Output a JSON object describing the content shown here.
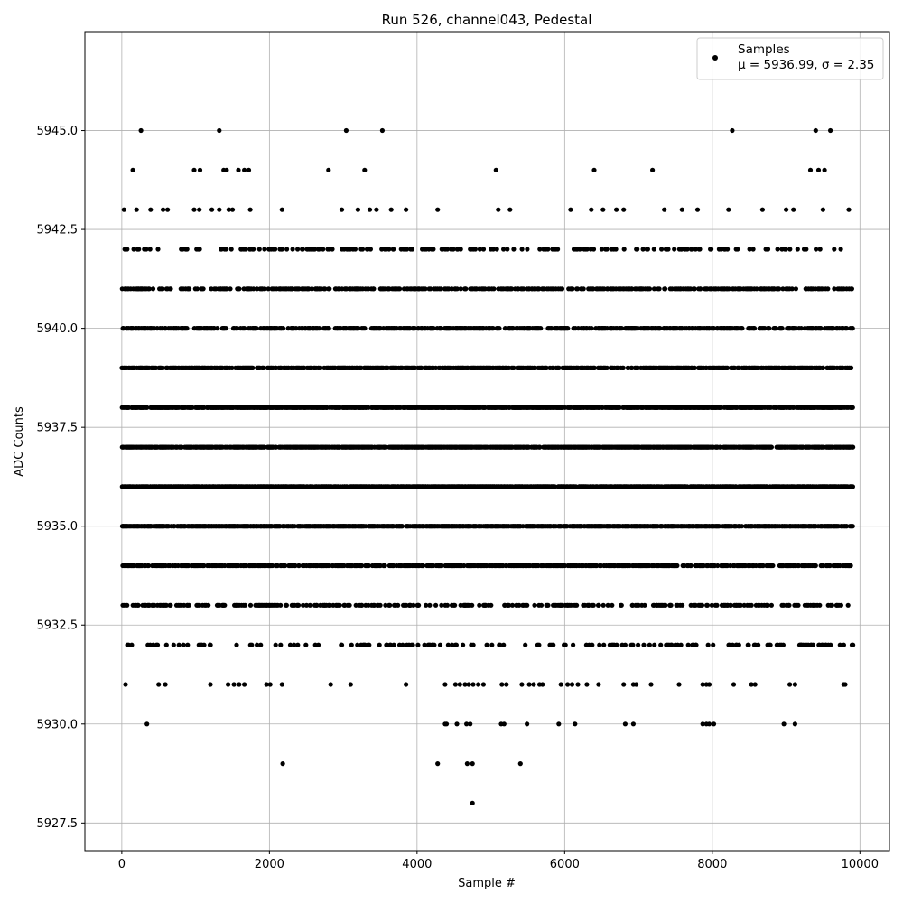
{
  "chart_data": {
    "type": "scatter",
    "title": "Run 526, channel043, Pedestal",
    "xlabel": "Sample #",
    "ylabel": "ADC Counts",
    "xlim": [
      -500,
      10400
    ],
    "ylim": [
      5926.8,
      5947.5
    ],
    "x_ticks": [
      0,
      2000,
      4000,
      6000,
      8000,
      10000
    ],
    "x_tick_labels": [
      "0",
      "2000",
      "4000",
      "6000",
      "8000",
      "10000"
    ],
    "y_ticks": [
      5927.5,
      5930.0,
      5932.5,
      5935.0,
      5937.5,
      5940.0,
      5942.5,
      5945.0
    ],
    "y_tick_labels": [
      "5927.5",
      "5930.0",
      "5932.5",
      "5935.0",
      "5937.5",
      "5940.0",
      "5942.5",
      "5945.0"
    ],
    "grid": true,
    "legend_position": "top-right",
    "series": [
      {
        "name": "Samples",
        "color": "#000000",
        "marker": "dot",
        "levels": [
          {
            "y": 5936,
            "density": 0.78,
            "x_range": [
              0,
              9900
            ]
          },
          {
            "y": 5937,
            "density": 0.78,
            "x_range": [
              0,
              9900
            ]
          },
          {
            "y": 5935,
            "density": 0.7,
            "x_range": [
              0,
              9900
            ]
          },
          {
            "y": 5938,
            "density": 0.7,
            "x_range": [
              0,
              9900
            ]
          },
          {
            "y": 5939,
            "density": 0.6,
            "x_range": [
              0,
              9900
            ]
          },
          {
            "y": 5934,
            "density": 0.55,
            "x_range": [
              0,
              9900
            ]
          },
          {
            "y": 5940,
            "density": 0.48,
            "x_range": [
              0,
              9900
            ]
          },
          {
            "y": 5933,
            "density": 0.3,
            "x_range": [
              0,
              9900
            ]
          },
          {
            "y": 5941,
            "density": 0.36,
            "x_range": [
              0,
              9900
            ]
          },
          {
            "y": 5942,
            "density": 0.2,
            "x_range": [
              0,
              9900
            ]
          },
          {
            "y": 5932,
            "density": 0.16,
            "x_range": [
              0,
              9900
            ]
          }
        ],
        "sparse_points": [
          [
            30,
            5943
          ],
          [
            150,
            5944
          ],
          [
            200,
            5943
          ],
          [
            260,
            5945
          ],
          [
            390,
            5943
          ],
          [
            560,
            5943
          ],
          [
            620,
            5943
          ],
          [
            980,
            5943
          ],
          [
            980,
            5944
          ],
          [
            1050,
            5943
          ],
          [
            1060,
            5944
          ],
          [
            1220,
            5943
          ],
          [
            1320,
            5945
          ],
          [
            1320,
            5943
          ],
          [
            1380,
            5944
          ],
          [
            1420,
            5944
          ],
          [
            1450,
            5943
          ],
          [
            1500,
            5943
          ],
          [
            1580,
            5944
          ],
          [
            1660,
            5944
          ],
          [
            1720,
            5944
          ],
          [
            1740,
            5943
          ],
          [
            2170,
            5943
          ],
          [
            2800,
            5944
          ],
          [
            2980,
            5943
          ],
          [
            3040,
            5945
          ],
          [
            3200,
            5943
          ],
          [
            3290,
            5944
          ],
          [
            3360,
            5943
          ],
          [
            3450,
            5943
          ],
          [
            3530,
            5945
          ],
          [
            3650,
            5943
          ],
          [
            3850,
            5943
          ],
          [
            4280,
            5943
          ],
          [
            5070,
            5944
          ],
          [
            5100,
            5943
          ],
          [
            5260,
            5943
          ],
          [
            6080,
            5943
          ],
          [
            6360,
            5943
          ],
          [
            6400,
            5944
          ],
          [
            6520,
            5943
          ],
          [
            6700,
            5943
          ],
          [
            6800,
            5943
          ],
          [
            7190,
            5944
          ],
          [
            7350,
            5943
          ],
          [
            7590,
            5943
          ],
          [
            7800,
            5943
          ],
          [
            8220,
            5943
          ],
          [
            8270,
            5945
          ],
          [
            8680,
            5943
          ],
          [
            9000,
            5943
          ],
          [
            9100,
            5943
          ],
          [
            9330,
            5944
          ],
          [
            9400,
            5945
          ],
          [
            9440,
            5944
          ],
          [
            9500,
            5943
          ],
          [
            9520,
            5944
          ],
          [
            9600,
            5945
          ],
          [
            9850,
            5943
          ],
          [
            50,
            5931
          ],
          [
            500,
            5931
          ],
          [
            590,
            5931
          ],
          [
            1200,
            5931
          ],
          [
            1440,
            5931
          ],
          [
            1520,
            5931
          ],
          [
            1590,
            5931
          ],
          [
            1660,
            5931
          ],
          [
            1960,
            5931
          ],
          [
            2010,
            5931
          ],
          [
            2170,
            5931
          ],
          [
            2830,
            5931
          ],
          [
            3100,
            5931
          ],
          [
            3850,
            5931
          ],
          [
            4380,
            5931
          ],
          [
            4520,
            5931
          ],
          [
            4580,
            5931
          ],
          [
            4650,
            5931
          ],
          [
            4700,
            5931
          ],
          [
            4760,
            5931
          ],
          [
            4830,
            5931
          ],
          [
            4900,
            5931
          ],
          [
            5150,
            5931
          ],
          [
            5210,
            5931
          ],
          [
            5420,
            5931
          ],
          [
            5520,
            5931
          ],
          [
            5580,
            5931
          ],
          [
            5660,
            5931
          ],
          [
            5700,
            5931
          ],
          [
            5950,
            5931
          ],
          [
            6040,
            5931
          ],
          [
            6100,
            5931
          ],
          [
            6180,
            5931
          ],
          [
            6300,
            5931
          ],
          [
            6460,
            5931
          ],
          [
            6800,
            5931
          ],
          [
            6930,
            5931
          ],
          [
            6970,
            5931
          ],
          [
            7170,
            5931
          ],
          [
            7550,
            5931
          ],
          [
            7870,
            5931
          ],
          [
            7920,
            5931
          ],
          [
            7960,
            5931
          ],
          [
            8290,
            5931
          ],
          [
            8530,
            5931
          ],
          [
            8580,
            5931
          ],
          [
            9050,
            5931
          ],
          [
            9120,
            5931
          ],
          [
            9780,
            5931
          ],
          [
            9800,
            5931
          ],
          [
            340,
            5930
          ],
          [
            4380,
            5930
          ],
          [
            4400,
            5930
          ],
          [
            4540,
            5930
          ],
          [
            4670,
            5930
          ],
          [
            4720,
            5930
          ],
          [
            5140,
            5930
          ],
          [
            5180,
            5930
          ],
          [
            5490,
            5930
          ],
          [
            5920,
            5930
          ],
          [
            6140,
            5930
          ],
          [
            6820,
            5930
          ],
          [
            6930,
            5930
          ],
          [
            7870,
            5930
          ],
          [
            7920,
            5930
          ],
          [
            7960,
            5930
          ],
          [
            8020,
            5930
          ],
          [
            8970,
            5930
          ],
          [
            9120,
            5930
          ],
          [
            2180,
            5929
          ],
          [
            4280,
            5929
          ],
          [
            4680,
            5929
          ],
          [
            4750,
            5929
          ],
          [
            5400,
            5929
          ],
          [
            4750,
            5928
          ]
        ]
      }
    ],
    "legend": {
      "label": "Samples",
      "stats_text": "μ = 5936.99, σ = 2.35"
    }
  }
}
